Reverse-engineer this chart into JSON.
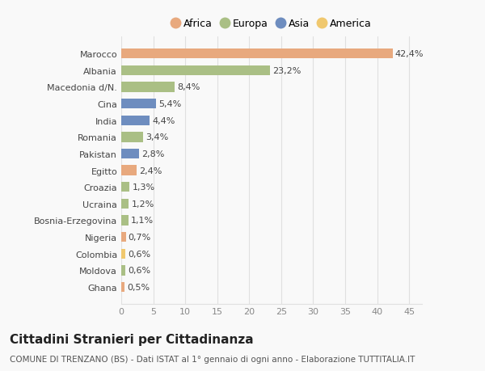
{
  "countries": [
    "Marocco",
    "Albania",
    "Macedonia d/N.",
    "Cina",
    "India",
    "Romania",
    "Pakistan",
    "Egitto",
    "Croazia",
    "Ucraina",
    "Bosnia-Erzegovina",
    "Nigeria",
    "Colombia",
    "Moldova",
    "Ghana"
  ],
  "values": [
    42.4,
    23.2,
    8.4,
    5.4,
    4.4,
    3.4,
    2.8,
    2.4,
    1.3,
    1.2,
    1.1,
    0.7,
    0.6,
    0.6,
    0.5
  ],
  "labels": [
    "42,4%",
    "23,2%",
    "8,4%",
    "5,4%",
    "4,4%",
    "3,4%",
    "2,8%",
    "2,4%",
    "1,3%",
    "1,2%",
    "1,1%",
    "0,7%",
    "0,6%",
    "0,6%",
    "0,5%"
  ],
  "continents": [
    "Africa",
    "Europa",
    "Europa",
    "Asia",
    "Asia",
    "Europa",
    "Asia",
    "Africa",
    "Europa",
    "Europa",
    "Europa",
    "Africa",
    "America",
    "Europa",
    "Africa"
  ],
  "continent_colors": {
    "Africa": "#E8A97E",
    "Europa": "#AABF85",
    "Asia": "#6E8DBF",
    "America": "#F0C86E"
  },
  "legend_order": [
    "Africa",
    "Europa",
    "Asia",
    "America"
  ],
  "bg_color": "#f9f9f9",
  "grid_color": "#e0e0e0",
  "xlim": [
    0,
    47
  ],
  "xticks": [
    0,
    5,
    10,
    15,
    20,
    25,
    30,
    35,
    40,
    45
  ],
  "title": "Cittadini Stranieri per Cittadinanza",
  "subtitle": "COMUNE DI TRENZANO (BS) - Dati ISTAT al 1° gennaio di ogni anno - Elaborazione TUTTITALIA.IT",
  "title_fontsize": 11,
  "subtitle_fontsize": 7.5,
  "label_fontsize": 8,
  "tick_fontsize": 8,
  "legend_fontsize": 9
}
